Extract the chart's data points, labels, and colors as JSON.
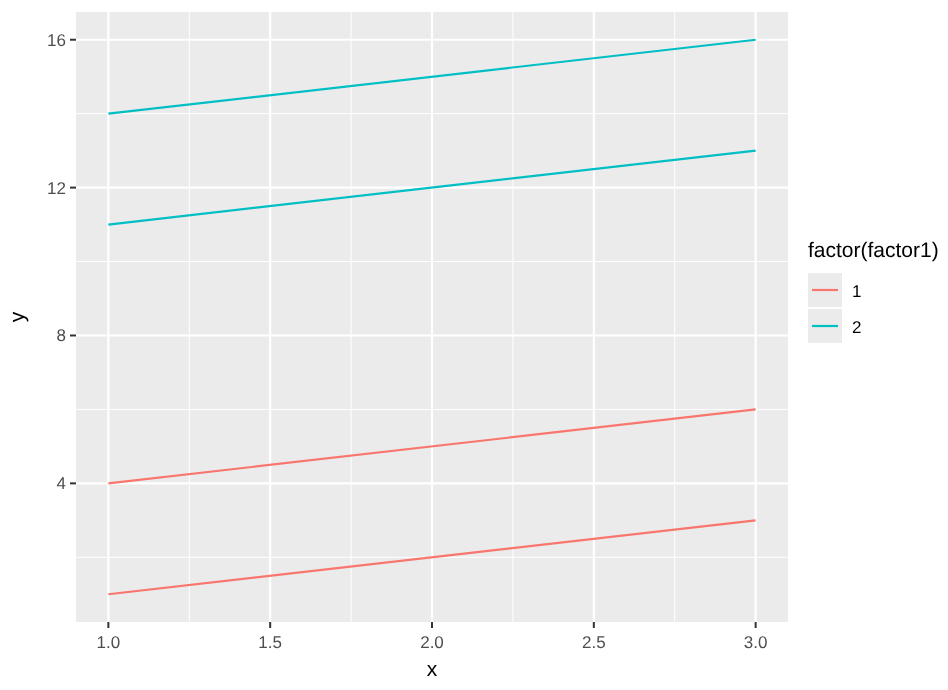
{
  "chart_data": {
    "type": "line",
    "xlabel": "x",
    "ylabel": "y",
    "legend_title": "factor(factor1)",
    "xlim": [
      0.9,
      3.1
    ],
    "xticks": [
      {
        "value": 1,
        "label": "1.0"
      },
      {
        "value": 1.5,
        "label": "1.5"
      },
      {
        "value": 2,
        "label": "2.0"
      },
      {
        "value": 2.5,
        "label": "2.5"
      },
      {
        "value": 3,
        "label": "3.0"
      }
    ],
    "ylim": [
      0.25,
      16.75
    ],
    "yticks": [
      4,
      8,
      12,
      16
    ],
    "grid": true,
    "legend": "right",
    "marker": "none",
    "line_style": "solid",
    "x": [
      1,
      3
    ],
    "series": [
      {
        "name": "1",
        "color": "#f8766d",
        "values": [
          1,
          3
        ]
      },
      {
        "color": "#f8766d",
        "values": [
          4,
          6
        ]
      },
      {
        "name": "2",
        "color": "#00bfc4",
        "values": [
          11,
          13
        ]
      },
      {
        "color": "#00bfc4",
        "values": [
          14,
          16
        ]
      }
    ]
  }
}
